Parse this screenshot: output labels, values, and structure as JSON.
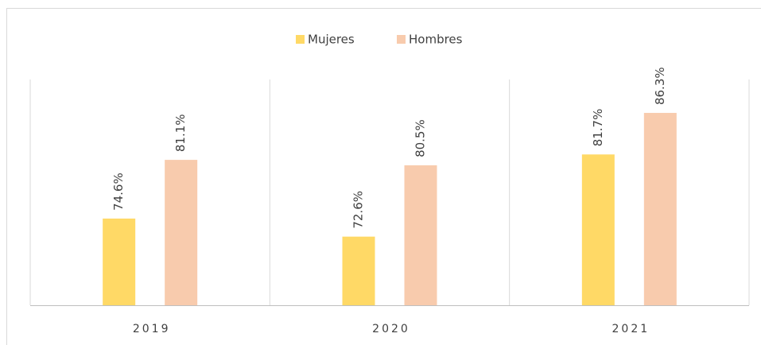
{
  "chart_data": {
    "type": "bar",
    "categories": [
      "2019",
      "2020",
      "2021"
    ],
    "series": [
      {
        "name": "Mujeres",
        "color": "#ffd966",
        "values": [
          74.6,
          72.6,
          81.7
        ],
        "value_labels": [
          "74.6%",
          "72.6%",
          "81.7%"
        ]
      },
      {
        "name": "Hombres",
        "color": "#f8cbad",
        "values": [
          81.1,
          80.5,
          86.3
        ],
        "value_labels": [
          "81.1%",
          "80.5%",
          "86.3%"
        ]
      }
    ],
    "ylim": [
      65,
      90
    ],
    "legend": "top"
  }
}
